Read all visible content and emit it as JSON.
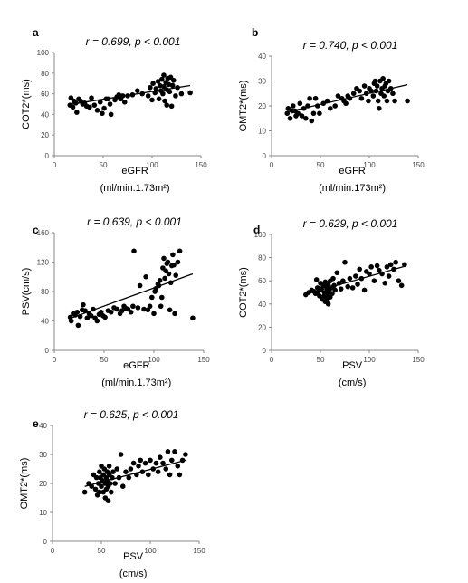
{
  "chart_data": [
    {
      "type": "scatter",
      "panel_label": "a",
      "annotation": "r = 0.699, p < 0.001",
      "ylabel": "COT2*(ms)",
      "xlabel": "eGFR",
      "xunit": "(ml/min.1.73m²)",
      "xlim": [
        0,
        150
      ],
      "ylim": [
        0,
        100
      ],
      "xticks": [
        "0",
        "50",
        "100",
        "150"
      ],
      "yticks": [
        "0",
        "20",
        "40",
        "60",
        "80",
        "100"
      ],
      "points": [
        [
          16,
          49
        ],
        [
          17,
          56
        ],
        [
          19,
          47
        ],
        [
          20,
          53
        ],
        [
          22,
          51
        ],
        [
          23,
          42
        ],
        [
          25,
          55
        ],
        [
          27,
          53
        ],
        [
          29,
          50
        ],
        [
          31,
          51
        ],
        [
          33,
          48
        ],
        [
          36,
          47
        ],
        [
          38,
          56
        ],
        [
          41,
          49
        ],
        [
          44,
          44
        ],
        [
          47,
          52
        ],
        [
          49,
          41
        ],
        [
          51,
          46
        ],
        [
          53,
          55
        ],
        [
          55,
          55
        ],
        [
          57,
          50
        ],
        [
          58,
          40
        ],
        [
          62,
          54
        ],
        [
          64,
          57
        ],
        [
          66,
          59
        ],
        [
          68,
          55
        ],
        [
          70,
          58
        ],
        [
          72,
          52
        ],
        [
          75,
          58
        ],
        [
          80,
          59
        ],
        [
          85,
          63
        ],
        [
          90,
          60
        ],
        [
          96,
          58
        ],
        [
          98,
          66
        ],
        [
          100,
          54
        ],
        [
          101,
          70
        ],
        [
          103,
          61
        ],
        [
          104,
          65
        ],
        [
          106,
          72
        ],
        [
          107,
          55
        ],
        [
          108,
          68
        ],
        [
          109,
          63
        ],
        [
          110,
          74
        ],
        [
          111,
          60
        ],
        [
          112,
          67
        ],
        [
          112,
          78
        ],
        [
          113,
          53
        ],
        [
          114,
          71
        ],
        [
          115,
          64
        ],
        [
          115,
          49
        ],
        [
          116,
          75
        ],
        [
          117,
          69
        ],
        [
          118,
          62
        ],
        [
          119,
          76
        ],
        [
          120,
          48
        ],
        [
          121,
          68
        ],
        [
          122,
          73
        ],
        [
          124,
          58
        ],
        [
          126,
          66
        ],
        [
          130,
          60
        ],
        [
          139,
          61
        ]
      ],
      "trend": [
        [
          15,
          49.5
        ],
        [
          139,
          68
        ]
      ]
    },
    {
      "type": "scatter",
      "panel_label": "b",
      "annotation": "r = 0.740, p < 0.001",
      "ylabel": "OMT2*(ms)",
      "xlabel": "eGFR",
      "xunit": "(ml/min.173m²)",
      "xlim": [
        0,
        150
      ],
      "ylim": [
        0,
        40
      ],
      "xticks": [
        "0",
        "50",
        "100",
        "150"
      ],
      "yticks": [
        "0",
        "10",
        "20",
        "30",
        "40"
      ],
      "points": [
        [
          16,
          17
        ],
        [
          17,
          19
        ],
        [
          19,
          15
        ],
        [
          21,
          18
        ],
        [
          22,
          20
        ],
        [
          24,
          18
        ],
        [
          25,
          16
        ],
        [
          27,
          17
        ],
        [
          29,
          21
        ],
        [
          31,
          16
        ],
        [
          33,
          19
        ],
        [
          35,
          15
        ],
        [
          37,
          20
        ],
        [
          39,
          23
        ],
        [
          41,
          14
        ],
        [
          43,
          17
        ],
        [
          45,
          23
        ],
        [
          47,
          20
        ],
        [
          49,
          17
        ],
        [
          53,
          21
        ],
        [
          57,
          22
        ],
        [
          60,
          19
        ],
        [
          65,
          20
        ],
        [
          68,
          24
        ],
        [
          72,
          23
        ],
        [
          74,
          22
        ],
        [
          76,
          21
        ],
        [
          78,
          24
        ],
        [
          80,
          23
        ],
        [
          84,
          25
        ],
        [
          87,
          27
        ],
        [
          90,
          26
        ],
        [
          92,
          23
        ],
        [
          95,
          28
        ],
        [
          97,
          25
        ],
        [
          99,
          22
        ],
        [
          100,
          27
        ],
        [
          102,
          26
        ],
        [
          104,
          24
        ],
        [
          105,
          29
        ],
        [
          106,
          30
        ],
        [
          107,
          26
        ],
        [
          108,
          28
        ],
        [
          109,
          22
        ],
        [
          110,
          19
        ],
        [
          111,
          30
        ],
        [
          112,
          25
        ],
        [
          113,
          27
        ],
        [
          114,
          31
        ],
        [
          115,
          24
        ],
        [
          116,
          28
        ],
        [
          117,
          29
        ],
        [
          118,
          22
        ],
        [
          119,
          26
        ],
        [
          120,
          30
        ],
        [
          122,
          27
        ],
        [
          124,
          25
        ],
        [
          126,
          22
        ],
        [
          139,
          22
        ]
      ],
      "trend": [
        [
          15,
          17.5
        ],
        [
          139,
          28.5
        ]
      ]
    },
    {
      "type": "scatter",
      "panel_label": "c",
      "annotation": "r = 0.639, p < 0.001",
      "ylabel": "PSV(cm/s)",
      "xlabel": "eGFR",
      "xunit": "(ml/min.1.73m²)",
      "xlim": [
        0,
        150
      ],
      "ylim": [
        0,
        160
      ],
      "xticks": [
        "0",
        "50",
        "100",
        "150"
      ],
      "yticks": [
        "0",
        "40",
        "80",
        "120",
        "160"
      ],
      "points": [
        [
          16,
          45
        ],
        [
          17,
          40
        ],
        [
          19,
          50
        ],
        [
          21,
          48
        ],
        [
          23,
          52
        ],
        [
          24,
          34
        ],
        [
          26,
          46
        ],
        [
          28,
          55
        ],
        [
          29,
          62
        ],
        [
          31,
          54
        ],
        [
          33,
          44
        ],
        [
          35,
          50
        ],
        [
          37,
          47
        ],
        [
          39,
          56
        ],
        [
          41,
          44
        ],
        [
          43,
          40
        ],
        [
          45,
          49
        ],
        [
          47,
          52
        ],
        [
          49,
          47
        ],
        [
          51,
          45
        ],
        [
          54,
          54
        ],
        [
          57,
          52
        ],
        [
          60,
          58
        ],
        [
          63,
          56
        ],
        [
          66,
          50
        ],
        [
          68,
          54
        ],
        [
          70,
          60
        ],
        [
          72,
          57
        ],
        [
          74,
          56
        ],
        [
          77,
          52
        ],
        [
          79,
          60
        ],
        [
          80,
          135
        ],
        [
          84,
          58
        ],
        [
          86,
          88
        ],
        [
          90,
          56
        ],
        [
          92,
          100
        ],
        [
          94,
          55
        ],
        [
          96,
          60
        ],
        [
          98,
          72
        ],
        [
          100,
          50
        ],
        [
          101,
          80
        ],
        [
          102,
          84
        ],
        [
          104,
          90
        ],
        [
          105,
          88
        ],
        [
          106,
          95
        ],
        [
          107,
          60
        ],
        [
          108,
          72
        ],
        [
          109,
          112
        ],
        [
          110,
          125
        ],
        [
          111,
          98
        ],
        [
          112,
          108
        ],
        [
          113,
          118
        ],
        [
          114,
          120
        ],
        [
          115,
          104
        ],
        [
          116,
          55
        ],
        [
          117,
          92
        ],
        [
          118,
          115
        ],
        [
          119,
          130
        ],
        [
          120,
          116
        ],
        [
          121,
          50
        ],
        [
          122,
          102
        ],
        [
          124,
          120
        ],
        [
          126,
          135
        ],
        [
          139,
          44
        ]
      ],
      "trend": [
        [
          15,
          43
        ],
        [
          139,
          104
        ]
      ]
    },
    {
      "type": "scatter",
      "panel_label": "d",
      "annotation": "r = 0.629, p < 0.001",
      "ylabel": "COT2*(ms)",
      "xlabel": "PSV",
      "xunit": "(cm/s)",
      "xlim": [
        0,
        150
      ],
      "ylim": [
        0,
        100
      ],
      "xticks": [
        "0",
        "50",
        "100",
        "150"
      ],
      "yticks": [
        "0",
        "20",
        "40",
        "60",
        "80",
        "100"
      ],
      "points": [
        [
          35,
          48
        ],
        [
          38,
          50
        ],
        [
          41,
          52
        ],
        [
          43,
          51
        ],
        [
          45,
          49
        ],
        [
          46,
          61
        ],
        [
          47,
          54
        ],
        [
          48,
          51
        ],
        [
          49,
          47
        ],
        [
          50,
          58
        ],
        [
          51,
          53
        ],
        [
          52,
          44
        ],
        [
          53,
          56
        ],
        [
          54,
          50
        ],
        [
          54,
          47
        ],
        [
          55,
          59
        ],
        [
          55,
          42
        ],
        [
          56,
          55
        ],
        [
          56,
          48
        ],
        [
          57,
          53
        ],
        [
          57,
          45
        ],
        [
          58,
          57
        ],
        [
          58,
          40
        ],
        [
          59,
          52
        ],
        [
          59,
          50
        ],
        [
          60,
          60
        ],
        [
          60,
          46
        ],
        [
          61,
          54
        ],
        [
          62,
          49
        ],
        [
          63,
          62
        ],
        [
          64,
          56
        ],
        [
          65,
          52
        ],
        [
          67,
          67
        ],
        [
          69,
          58
        ],
        [
          71,
          53
        ],
        [
          73,
          60
        ],
        [
          75,
          76
        ],
        [
          78,
          55
        ],
        [
          80,
          62
        ],
        [
          83,
          54
        ],
        [
          86,
          64
        ],
        [
          88,
          57
        ],
        [
          90,
          70
        ],
        [
          92,
          62
        ],
        [
          95,
          52
        ],
        [
          97,
          68
        ],
        [
          100,
          66
        ],
        [
          102,
          72
        ],
        [
          105,
          60
        ],
        [
          108,
          73
        ],
        [
          110,
          69
        ],
        [
          113,
          66
        ],
        [
          116,
          58
        ],
        [
          118,
          72
        ],
        [
          120,
          64
        ],
        [
          122,
          74
        ],
        [
          125,
          70
        ],
        [
          127,
          76
        ],
        [
          130,
          60
        ],
        [
          133,
          56
        ],
        [
          136,
          74
        ]
      ],
      "trend": [
        [
          35,
          48.5
        ],
        [
          136,
          72.5
        ]
      ]
    },
    {
      "type": "scatter",
      "panel_label": "e",
      "annotation": "r = 0.625, p < 0.001",
      "ylabel": "OMT2*(ms)",
      "xlabel": "PSV",
      "xunit": "(cm/s)",
      "xlim": [
        0,
        150
      ],
      "ylim": [
        0,
        40
      ],
      "xticks": [
        "0",
        "50",
        "100",
        "150"
      ],
      "yticks": [
        "0",
        "10",
        "20",
        "30",
        "40"
      ],
      "points": [
        [
          33,
          17
        ],
        [
          37,
          20
        ],
        [
          40,
          19
        ],
        [
          42,
          23
        ],
        [
          44,
          18
        ],
        [
          45,
          22
        ],
        [
          46,
          16
        ],
        [
          47,
          20
        ],
        [
          48,
          24
        ],
        [
          48,
          17
        ],
        [
          49,
          22
        ],
        [
          50,
          19
        ],
        [
          50,
          26
        ],
        [
          51,
          21
        ],
        [
          52,
          17
        ],
        [
          52,
          23
        ],
        [
          53,
          25
        ],
        [
          54,
          20
        ],
        [
          54,
          15
        ],
        [
          55,
          22
        ],
        [
          55,
          18
        ],
        [
          56,
          24
        ],
        [
          56,
          21
        ],
        [
          57,
          14
        ],
        [
          57,
          19
        ],
        [
          58,
          23
        ],
        [
          58,
          26
        ],
        [
          59,
          20
        ],
        [
          60,
          17
        ],
        [
          61,
          22
        ],
        [
          62,
          24
        ],
        [
          64,
          20
        ],
        [
          66,
          25
        ],
        [
          68,
          22
        ],
        [
          70,
          30
        ],
        [
          72,
          19
        ],
        [
          75,
          24
        ],
        [
          78,
          22
        ],
        [
          80,
          25
        ],
        [
          83,
          27
        ],
        [
          86,
          23
        ],
        [
          88,
          26
        ],
        [
          90,
          28
        ],
        [
          92,
          24
        ],
        [
          95,
          27
        ],
        [
          98,
          23
        ],
        [
          100,
          28
        ],
        [
          103,
          25
        ],
        [
          106,
          27
        ],
        [
          108,
          24
        ],
        [
          110,
          29
        ],
        [
          113,
          27
        ],
        [
          116,
          25
        ],
        [
          118,
          31
        ],
        [
          120,
          23
        ],
        [
          122,
          28
        ],
        [
          125,
          31
        ],
        [
          128,
          26
        ],
        [
          130,
          23
        ],
        [
          133,
          28
        ],
        [
          136,
          30
        ]
      ],
      "trend": [
        [
          33,
          19
        ],
        [
          136,
          28
        ]
      ]
    }
  ]
}
